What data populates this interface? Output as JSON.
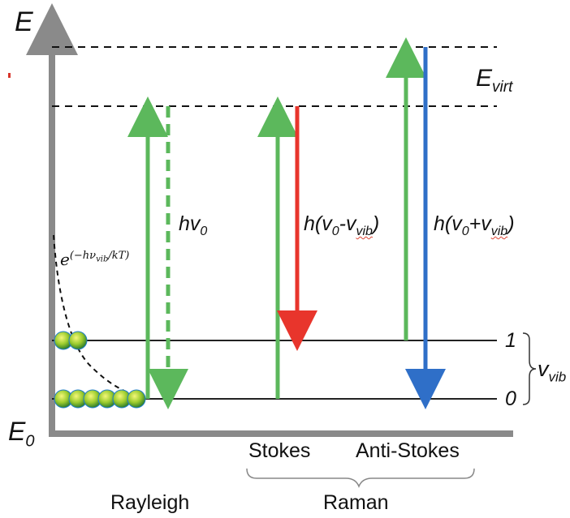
{
  "axis": {
    "energy_label": "E",
    "ground_label": "E",
    "ground_sub": "0"
  },
  "levels": {
    "virtual_label": "E",
    "virtual_sub": "virt",
    "level_1": "1",
    "level_0": "0",
    "vib_label": "v",
    "vib_sub": "vib"
  },
  "transitions": {
    "rayleigh": {
      "h": "hv",
      "sub": "0"
    },
    "stokes": {
      "prefix": "h(v",
      "sub0": "0",
      "mid": "-v",
      "subvib": "vib",
      "suffix": ")"
    },
    "anti_stokes": {
      "prefix": "h(v",
      "sub0": "0",
      "mid": "+v",
      "subvib": "vib",
      "suffix": ")"
    }
  },
  "boltzmann": {
    "base": "e",
    "exponent": "(−hν",
    "exponent_sub": "vib",
    "exponent_den": "/kT)"
  },
  "categories": {
    "stokes": "Stokes",
    "anti_stokes": "Anti-Stokes",
    "rayleigh": "Rayleigh",
    "raman": "Raman"
  },
  "colors": {
    "excitation": "#5cb85c",
    "stokes_emission": "#e8352c",
    "anti_stokes_emission": "#2f6fc8",
    "axis": "#8a8a8a",
    "level_line": "#222222"
  }
}
